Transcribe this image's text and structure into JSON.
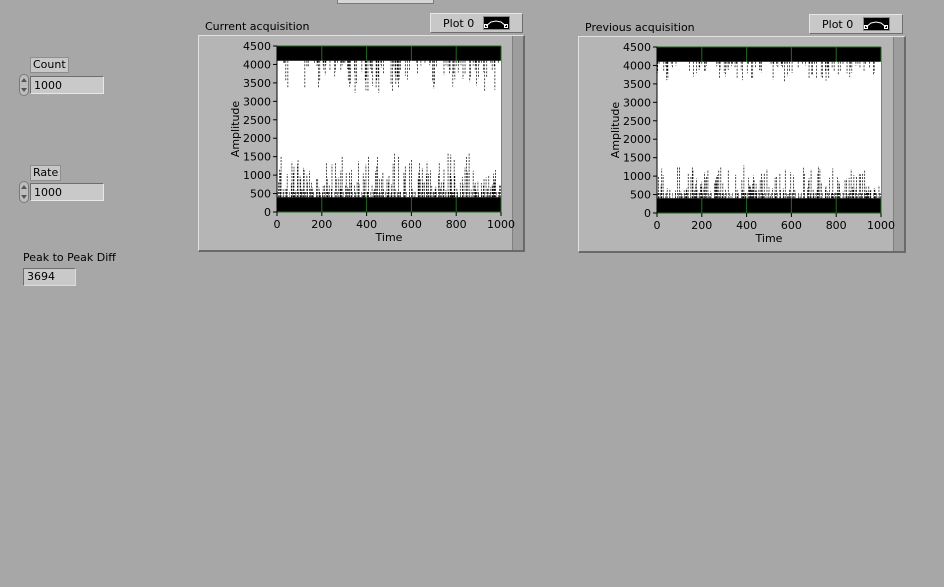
{
  "controls": {
    "count": {
      "label": "Count",
      "value": "1000"
    },
    "rate": {
      "label": "Rate",
      "value": "1000"
    },
    "peak_to_peak": {
      "label": "Peak to Peak Diff",
      "value": "3694"
    }
  },
  "graphs": [
    {
      "title": "Current acquisition",
      "legend": "Plot 0"
    },
    {
      "title": "Previous acquisition",
      "legend": "Plot 0"
    }
  ],
  "colors": {
    "panel": "#a7a7a7",
    "plot_bg": "#000000",
    "trace": "#ffffff",
    "grid": "#1f6b1f"
  },
  "chart_data": [
    {
      "type": "line",
      "title": "Current acquisition",
      "xlabel": "Time",
      "ylabel": "Amplitude",
      "xlim": [
        0,
        1000
      ],
      "ylim": [
        0,
        4500
      ],
      "x_ticks": [
        "0",
        "200",
        "400",
        "600",
        "800",
        "1000"
      ],
      "y_ticks": [
        "0",
        "500",
        "1000",
        "1500",
        "2000",
        "2500",
        "3000",
        "3500",
        "4000",
        "4500"
      ],
      "grid": true,
      "series": [
        {
          "name": "Plot 0",
          "low_baseline": 400,
          "high_baseline": 4100,
          "lower_band_max": 1500,
          "upper_band_min": 3300
        }
      ]
    },
    {
      "type": "line",
      "title": "Previous acquisition",
      "xlabel": "Time",
      "ylabel": "Amplitude",
      "xlim": [
        0,
        1000
      ],
      "ylim": [
        0,
        4500
      ],
      "x_ticks": [
        "0",
        "200",
        "400",
        "600",
        "800",
        "1000"
      ],
      "y_ticks": [
        "0",
        "500",
        "1000",
        "1500",
        "2000",
        "2500",
        "3000",
        "3500",
        "4000",
        "4500"
      ],
      "grid": true,
      "series": [
        {
          "name": "Plot 0",
          "low_baseline": 400,
          "high_baseline": 4100,
          "lower_band_max": 1200,
          "upper_band_min": 3650
        }
      ]
    }
  ]
}
